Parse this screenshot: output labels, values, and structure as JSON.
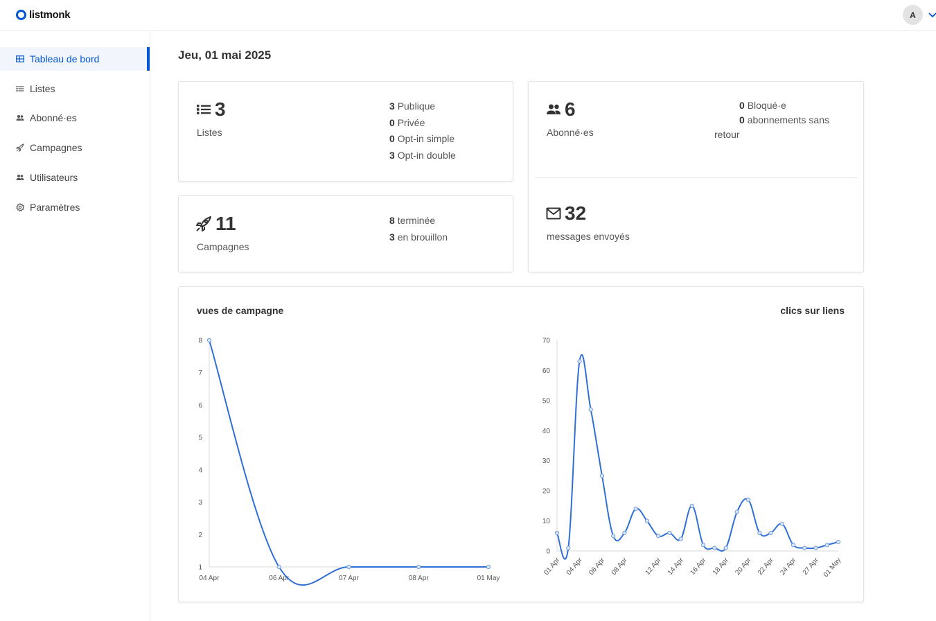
{
  "app": {
    "name": "listmonk"
  },
  "user": {
    "avatar_initial": "A"
  },
  "sidebar": {
    "items": [
      {
        "label": "Tableau de bord",
        "icon": "dashboard-icon",
        "active": true
      },
      {
        "label": "Listes",
        "icon": "list-icon"
      },
      {
        "label": "Abonné·es",
        "icon": "users-icon"
      },
      {
        "label": "Campagnes",
        "icon": "rocket-icon"
      },
      {
        "label": "Utilisateurs",
        "icon": "users-icon"
      },
      {
        "label": "Paramètres",
        "icon": "gear-icon"
      }
    ]
  },
  "page": {
    "date": "Jeu, 01 mai 2025"
  },
  "cards": {
    "lists": {
      "count": "3",
      "label": "Listes",
      "breakdown": [
        {
          "value": "3",
          "label": "Publique"
        },
        {
          "value": "0",
          "label": "Privée"
        },
        {
          "value": "0",
          "label": "Opt-in simple"
        },
        {
          "value": "3",
          "label": "Opt-in double"
        }
      ]
    },
    "subscribers": {
      "count": "6",
      "label": "Abonné·es",
      "breakdown": [
        {
          "value": "0",
          "label": "Bloqué·e"
        },
        {
          "value": "0",
          "label": "abonnements sans retour"
        }
      ]
    },
    "campaigns": {
      "count": "11",
      "label": "Campagnes",
      "breakdown": [
        {
          "value": "8",
          "label": "terminée"
        },
        {
          "value": "3",
          "label": "en brouillon"
        }
      ]
    },
    "messages": {
      "count": "32",
      "label": "messages envoyés"
    }
  },
  "colors": {
    "accent": "#0055d4",
    "line": "#2f6fd6"
  },
  "chart_data": [
    {
      "type": "line",
      "title": "vues de campagne",
      "x": [
        "04 Apr",
        "06 Apr",
        "07 Apr",
        "08 Apr",
        "01 May"
      ],
      "values": [
        8,
        1,
        1,
        1,
        1
      ],
      "ylim": [
        1,
        8
      ],
      "yticks": [
        1,
        2,
        3,
        4,
        5,
        6,
        7,
        8
      ]
    },
    {
      "type": "line",
      "title": "clics sur liens",
      "x": [
        "01 Apr",
        "03 Apr",
        "04 Apr",
        "05 Apr",
        "06 Apr",
        "07 Apr",
        "08 Apr",
        "09 Apr",
        "11 Apr",
        "12 Apr",
        "13 Apr",
        "14 Apr",
        "15 Apr",
        "16 Apr",
        "17 Apr",
        "18 Apr",
        "19 Apr",
        "20 Apr",
        "21 Apr",
        "22 Apr",
        "23 Apr",
        "24 Apr",
        "25 Apr",
        "27 Apr",
        "28 Apr",
        "01 May"
      ],
      "values": [
        6,
        1,
        63,
        47,
        25,
        5,
        6,
        14,
        10,
        5,
        6,
        4,
        15,
        2,
        1,
        1,
        13,
        17,
        6,
        6,
        9,
        2,
        1,
        1,
        2,
        3
      ],
      "xticks": [
        "01 Apr",
        "04 Apr",
        "06 Apr",
        "08 Apr",
        "12 Apr",
        "14 Apr",
        "16 Apr",
        "18 Apr",
        "20 Apr",
        "22 Apr",
        "24 Apr",
        "27 Apr",
        "01 May"
      ],
      "ylim": [
        0,
        70
      ],
      "yticks": [
        0,
        10,
        20,
        30,
        40,
        50,
        60,
        70
      ]
    }
  ]
}
